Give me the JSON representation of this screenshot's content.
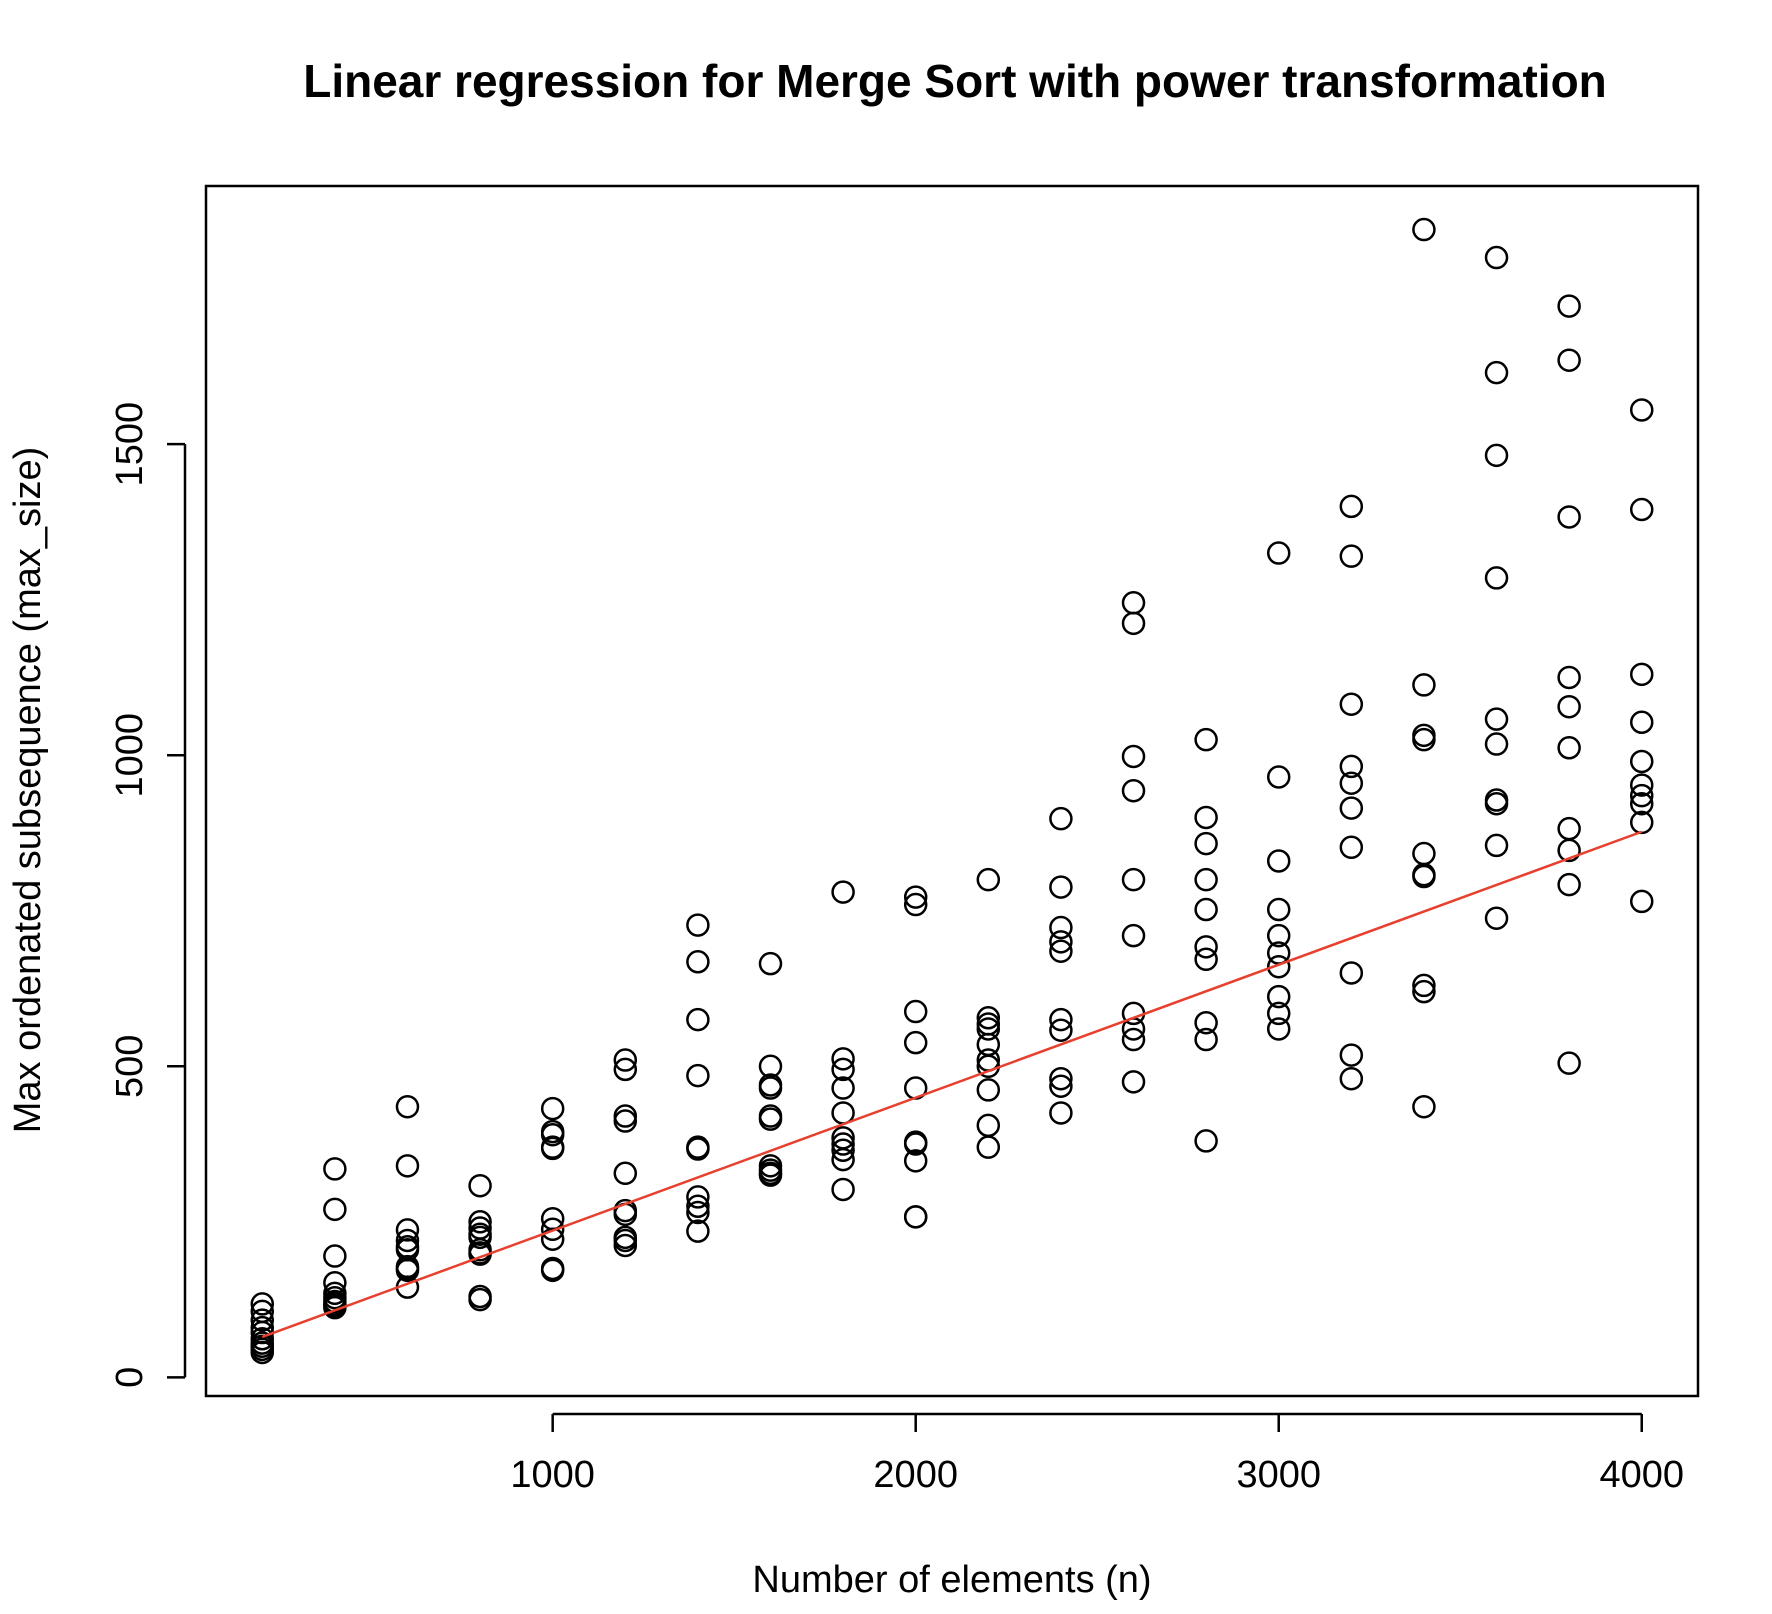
{
  "chart_data": {
    "type": "scatter",
    "title": "Linear regression for Merge Sort with power transformation",
    "xlabel": "Number of elements (n)",
    "ylabel": "Max ordenated subsequence (max_size)",
    "xlim": [
      45,
      4155
    ],
    "ylim": [
      -30,
      1915
    ],
    "x_ticks": [
      1000,
      2000,
      3000,
      4000
    ],
    "x_tick_labels": [
      "1000",
      "2000",
      "3000",
      "4000"
    ],
    "y_ticks": [
      0,
      500,
      1000,
      1500
    ],
    "y_tick_labels": [
      "0",
      "500",
      "1000",
      "1500"
    ],
    "grid": false,
    "legend": "none",
    "point_color": "#000000",
    "fit_color": "#e8402e",
    "series": [
      {
        "kind": "points",
        "x": [
          200,
          200,
          200,
          200,
          200,
          200,
          200,
          200,
          200,
          200,
          400,
          400,
          400,
          400,
          400,
          400,
          400,
          400,
          400,
          400,
          600,
          600,
          600,
          600,
          600,
          600,
          600,
          600,
          600,
          600,
          800,
          800,
          800,
          800,
          800,
          800,
          800,
          800,
          800,
          800,
          1000,
          1000,
          1000,
          1000,
          1000,
          1000,
          1000,
          1000,
          1000,
          1000,
          1200,
          1200,
          1200,
          1200,
          1200,
          1200,
          1200,
          1200,
          1200,
          1200,
          1400,
          1400,
          1400,
          1400,
          1400,
          1400,
          1400,
          1400,
          1400,
          1400,
          1600,
          1600,
          1600,
          1600,
          1600,
          1600,
          1600,
          1600,
          1600,
          1600,
          1800,
          1800,
          1800,
          1800,
          1800,
          1800,
          1800,
          1800,
          1800,
          1800,
          2000,
          2000,
          2000,
          2000,
          2000,
          2000,
          2000,
          2000,
          2000,
          2000,
          2200,
          2200,
          2200,
          2200,
          2200,
          2200,
          2200,
          2200,
          2200,
          2200,
          2400,
          2400,
          2400,
          2400,
          2400,
          2400,
          2400,
          2400,
          2400,
          2400,
          2600,
          2600,
          2600,
          2600,
          2600,
          2600,
          2600,
          2600,
          2600,
          2600,
          2800,
          2800,
          2800,
          2800,
          2800,
          2800,
          2800,
          2800,
          2800,
          2800,
          3000,
          3000,
          3000,
          3000,
          3000,
          3000,
          3000,
          3000,
          3000,
          3000,
          3200,
          3200,
          3200,
          3200,
          3200,
          3200,
          3200,
          3200,
          3200,
          3200,
          3400,
          3400,
          3400,
          3400,
          3400,
          3400,
          3400,
          3400,
          3400,
          3400,
          3600,
          3600,
          3600,
          3600,
          3600,
          3600,
          3600,
          3600,
          3600,
          3600,
          3800,
          3800,
          3800,
          3800,
          3800,
          3800,
          3800,
          3800,
          3800,
          3800,
          4000,
          4000,
          4000,
          4000,
          4000,
          4000,
          4000,
          4000,
          4000,
          4000
        ],
        "y": [
          118,
          106,
          92,
          80,
          72,
          62,
          55,
          50,
          45,
          40,
          335,
          270,
          195,
          152,
          135,
          128,
          122,
          118,
          115,
          112,
          435,
          340,
          237,
          220,
          210,
          205,
          178,
          175,
          172,
          145,
          308,
          250,
          240,
          230,
          225,
          205,
          200,
          198,
          130,
          125,
          432,
          395,
          390,
          370,
          368,
          255,
          238,
          222,
          175,
          172,
          510,
          495,
          420,
          412,
          328,
          268,
          262,
          225,
          220,
          212,
          727,
          668,
          575,
          485,
          370,
          367,
          290,
          275,
          265,
          235,
          665,
          500,
          470,
          465,
          420,
          415,
          340,
          333,
          328,
          325,
          780,
          512,
          495,
          465,
          425,
          385,
          375,
          365,
          350,
          302,
          772,
          760,
          588,
          538,
          465,
          378,
          375,
          348,
          258,
          258,
          800,
          578,
          568,
          560,
          535,
          510,
          500,
          462,
          405,
          370,
          898,
          788,
          723,
          700,
          685,
          575,
          558,
          480,
          468,
          425,
          1245,
          1212,
          998,
          943,
          800,
          710,
          585,
          560,
          543,
          475,
          1025,
          900,
          858,
          800,
          752,
          692,
          672,
          570,
          543,
          380,
          1325,
          965,
          830,
          752,
          710,
          682,
          660,
          612,
          585,
          560,
          1400,
          1320,
          1082,
          982,
          955,
          915,
          852,
          650,
          518,
          480,
          1845,
          1113,
          1032,
          1025,
          842,
          808,
          805,
          630,
          620,
          435,
          1800,
          1615,
          1482,
          1285,
          1058,
          1018,
          928,
          922,
          855,
          738,
          1722,
          1635,
          1383,
          1125,
          1078,
          1012,
          882,
          847,
          792,
          505,
          1555,
          1395,
          1130,
          1053,
          990,
          952,
          935,
          922,
          892,
          765
        ]
      },
      {
        "kind": "fit-line",
        "x": [
          200,
          4000
        ],
        "y": [
          65,
          877
        ]
      }
    ]
  }
}
